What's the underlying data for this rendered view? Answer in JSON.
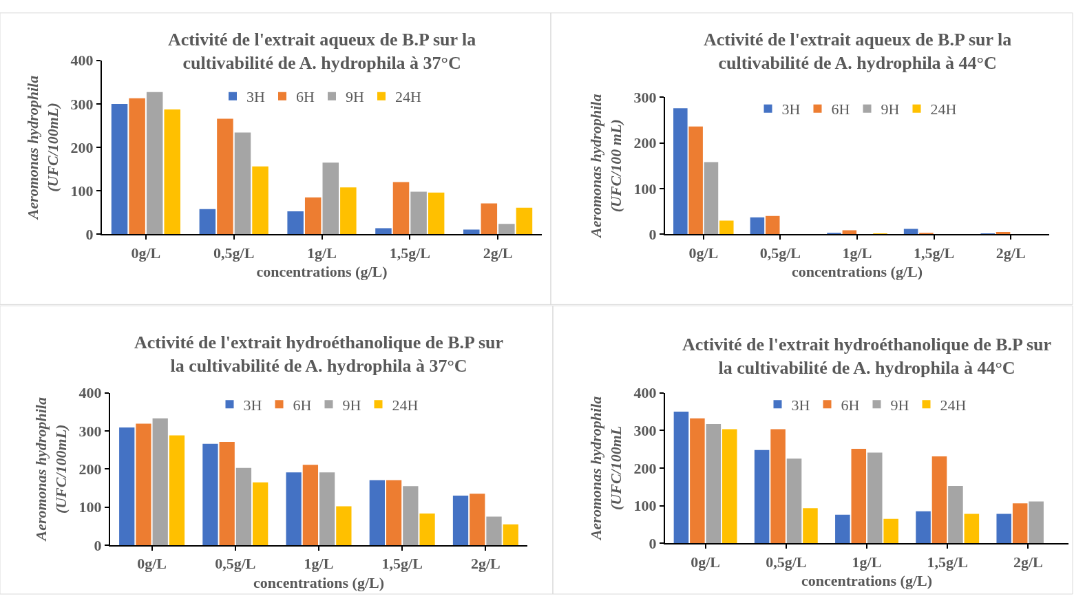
{
  "chart_data": [
    {
      "type": "bar",
      "title": "Activité de l'extrait aqueux de B.P sur la\ncultivabilité de A. hydrophila à 37°C",
      "xlabel": "concentrations (g/L)",
      "ylabel": "Aeromonas hydrophila\n(UFC/100mL)",
      "categories": [
        "0g/L",
        "0,5g/L",
        "1g/L",
        "1,5g/L",
        "2g/L"
      ],
      "ylim": [
        0,
        400
      ],
      "yticks": [
        0,
        100,
        200,
        300,
        400
      ],
      "grid": false,
      "legend": "top",
      "series": [
        {
          "name": "3H",
          "color": "#4472c4",
          "values": [
            300,
            58,
            53,
            14,
            11
          ]
        },
        {
          "name": "6H",
          "color": "#ed7d31",
          "values": [
            313,
            266,
            85,
            120,
            71
          ]
        },
        {
          "name": "9H",
          "color": "#a5a5a5",
          "values": [
            327,
            234,
            165,
            98,
            24
          ]
        },
        {
          "name": "24H",
          "color": "#ffc000",
          "values": [
            287,
            156,
            108,
            96,
            61
          ]
        }
      ]
    },
    {
      "type": "bar",
      "title": "Activité de l'extrait aqueux de B.P sur la\ncultivabilité de A. hydrophila à 44°C",
      "xlabel": "concentrations (g/L)",
      "ylabel": "Aeromonas hydrophila\n(UFC/100 mL)",
      "categories": [
        "0g/L",
        "0,5g/L",
        "1g/L",
        "1,5g/L",
        "2g/L"
      ],
      "ylim": [
        0,
        300
      ],
      "yticks": [
        0,
        100,
        200,
        300
      ],
      "grid": false,
      "legend": "top",
      "series": [
        {
          "name": "3H",
          "color": "#4472c4",
          "values": [
            276,
            37,
            3,
            12,
            2
          ]
        },
        {
          "name": "6H",
          "color": "#ed7d31",
          "values": [
            236,
            40,
            9,
            3,
            5
          ]
        },
        {
          "name": "9H",
          "color": "#a5a5a5",
          "values": [
            158,
            0,
            0,
            0,
            0
          ]
        },
        {
          "name": "24H",
          "color": "#ffc000",
          "values": [
            30,
            0,
            2,
            0,
            0
          ]
        }
      ]
    },
    {
      "type": "bar",
      "title": "Activité de l'extrait hydroéthanolique de B.P sur\nla cultivabilité de A. hydrophila à 37°C",
      "xlabel": "concentrations (g/L)",
      "ylabel": "Aeromonas hydrophila\n(UFC/100mL)",
      "categories": [
        "0g/L",
        "0,5g/L",
        "1g/L",
        "1,5g/L",
        "2g/L"
      ],
      "ylim": [
        0,
        400
      ],
      "yticks": [
        0,
        100,
        200,
        300,
        400
      ],
      "grid": false,
      "legend": "top",
      "series": [
        {
          "name": "3H",
          "color": "#4472c4",
          "values": [
            309,
            266,
            191,
            171,
            130
          ]
        },
        {
          "name": "6H",
          "color": "#ed7d31",
          "values": [
            319,
            271,
            211,
            171,
            135
          ]
        },
        {
          "name": "9H",
          "color": "#a5a5a5",
          "values": [
            333,
            203,
            191,
            155,
            75
          ]
        },
        {
          "name": "24H",
          "color": "#ffc000",
          "values": [
            288,
            165,
            102,
            83,
            55
          ]
        }
      ]
    },
    {
      "type": "bar",
      "title": "Activité de l'extrait hydroéthanolique de B.P sur\nla cultivabilité de A. hydrophila à 44°C",
      "xlabel": "concentrations (g/L)",
      "ylabel": "Aeromonas hydrophila\n(UFC/100mL",
      "categories": [
        "0g/L",
        "0,5g/L",
        "1g/L",
        "1,5g/L",
        "2g/L"
      ],
      "ylim": [
        0,
        400
      ],
      "yticks": [
        0,
        100,
        200,
        300,
        400
      ],
      "grid": false,
      "legend": "top",
      "series": [
        {
          "name": "3H",
          "color": "#4472c4",
          "values": [
            350,
            248,
            76,
            85,
            78
          ]
        },
        {
          "name": "6H",
          "color": "#ed7d31",
          "values": [
            332,
            303,
            251,
            231,
            106
          ]
        },
        {
          "name": "9H",
          "color": "#a5a5a5",
          "values": [
            317,
            225,
            241,
            152,
            111
          ]
        },
        {
          "name": "24H",
          "color": "#ffc000",
          "values": [
            303,
            93,
            65,
            78,
            0
          ]
        }
      ]
    }
  ]
}
